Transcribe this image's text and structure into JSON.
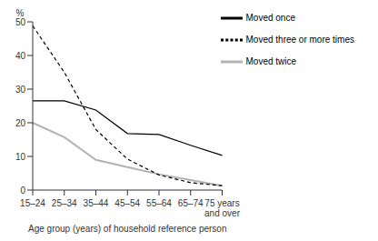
{
  "chart_data": {
    "type": "line",
    "y_label": "%",
    "x_label": "Age group (years) of household reference person",
    "categories": [
      "15–24",
      "25–34",
      "35–44",
      "45–54",
      "55–64",
      "65–74",
      "75 years and over"
    ],
    "series": [
      {
        "name": "Moved once",
        "color": "#000000",
        "line_style": "solid",
        "values": [
          26.5,
          26.5,
          23.8,
          16.8,
          16.5,
          13.3,
          10.3
        ]
      },
      {
        "name": "Moved twice",
        "color": "#b3b3b3",
        "line_style": "solid",
        "values": [
          20,
          15.7,
          9,
          6.8,
          4.7,
          3,
          1.3
        ]
      },
      {
        "name": "Moved three or more times",
        "color": "#000000",
        "line_style": "dashed",
        "values": [
          48.8,
          35,
          18,
          9.2,
          4.5,
          2.2,
          1.3
        ]
      }
    ],
    "ylim": [
      0,
      50
    ],
    "yticks": [
      0,
      10,
      20,
      30,
      40,
      50
    ],
    "legend": "top-right",
    "grid": false
  }
}
